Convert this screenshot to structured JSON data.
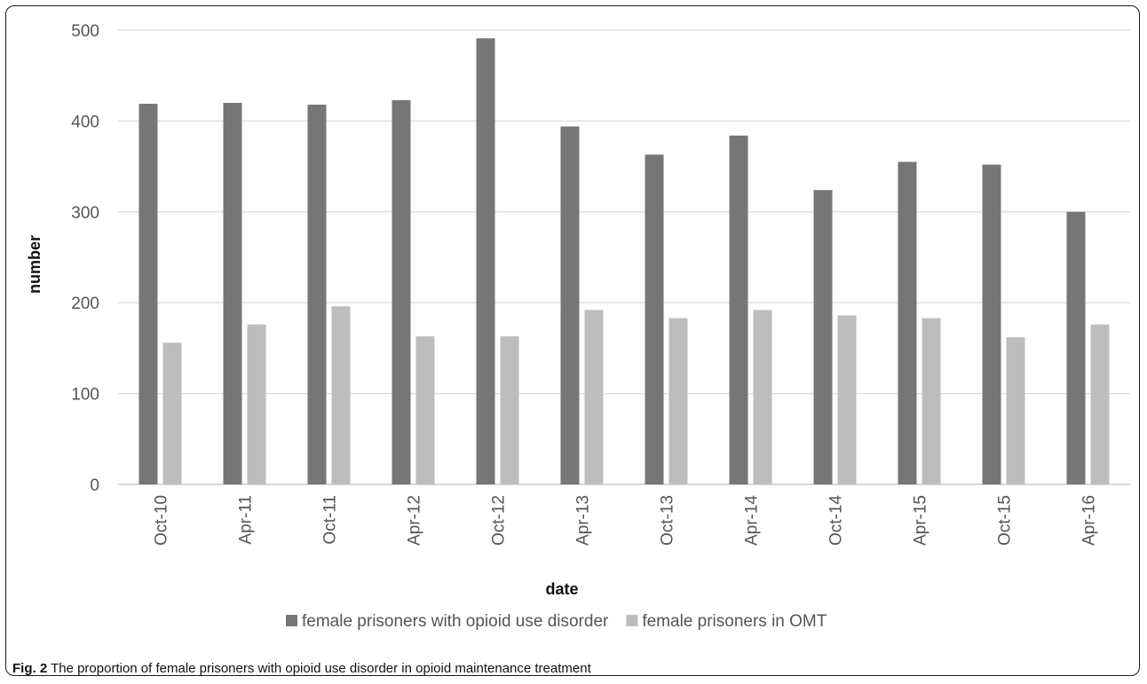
{
  "chart_data": {
    "type": "bar",
    "categories": [
      "Oct-10",
      "Apr-11",
      "Oct-11",
      "Apr-12",
      "Oct-12",
      "Apr-13",
      "Oct-13",
      "Apr-14",
      "Oct-14",
      "Apr-15",
      "Oct-15",
      "Apr-16"
    ],
    "series": [
      {
        "name": "female prisoners with opioid use disorder",
        "values": [
          419,
          420,
          418,
          423,
          491,
          394,
          363,
          384,
          324,
          355,
          352,
          300
        ],
        "color": "#767676"
      },
      {
        "name": "female prisoners in OMT",
        "values": [
          156,
          176,
          196,
          163,
          163,
          192,
          183,
          192,
          186,
          183,
          162,
          176
        ],
        "color": "#bdbdbd"
      }
    ],
    "xlabel": "date",
    "ylabel": "number",
    "ylim": [
      0,
      500
    ],
    "yticks": [
      0,
      100,
      200,
      300,
      400,
      500
    ],
    "grid": true,
    "legend_position": "bottom"
  },
  "caption": {
    "label": "Fig. 2",
    "text": "The proportion of female prisoners with opioid use disorder in opioid maintenance treatment"
  }
}
